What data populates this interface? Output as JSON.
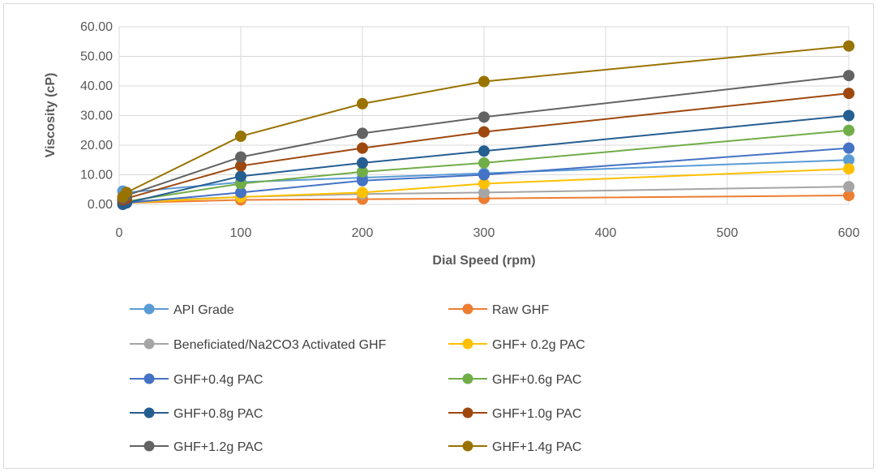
{
  "chart_data": {
    "type": "scatter",
    "xlabel": "Dial Speed (rpm)",
    "ylabel": "Viscosity (cP)",
    "xlim": [
      0,
      600
    ],
    "ylim": [
      0,
      60
    ],
    "x_ticks": [
      "0",
      "100",
      "200",
      "300",
      "400",
      "500",
      "600"
    ],
    "y_ticks": [
      "0.00",
      "10.00",
      "20.00",
      "30.00",
      "40.00",
      "50.00",
      "60.00"
    ],
    "grid": "on",
    "legend_position": "bottom",
    "x": [
      3,
      6,
      100,
      200,
      300,
      600
    ],
    "series": [
      {
        "name": "API Grade",
        "color": "#5b9bd5",
        "values": [
          4.5,
          4.0,
          7.5,
          9.0,
          10.5,
          15.0
        ]
      },
      {
        "name": "Raw GHF",
        "color": "#ed7d31",
        "values": [
          0.5,
          0.5,
          1.5,
          1.75,
          2.0,
          3.0
        ]
      },
      {
        "name": "Beneficiated/Na2CO3 Activated GHF",
        "color": "#a5a5a5",
        "values": [
          1.0,
          1.0,
          2.5,
          3.5,
          4.0,
          6.0
        ]
      },
      {
        "name": "GHF+ 0.2g PAC",
        "color": "#ffc000",
        "values": [
          0.5,
          0.5,
          2.5,
          4.0,
          7.0,
          12.0
        ]
      },
      {
        "name": "GHF+0.4g PAC",
        "color": "#4472c4",
        "values": [
          0.5,
          0.5,
          4.0,
          8.0,
          10.0,
          19.0
        ]
      },
      {
        "name": "GHF+0.6g PAC",
        "color": "#70ad47",
        "values": [
          1.0,
          1.0,
          7.0,
          11.0,
          14.0,
          25.0
        ]
      },
      {
        "name": "GHF+0.8g PAC",
        "color": "#255e91",
        "values": [
          0.0,
          0.5,
          9.5,
          14.0,
          18.0,
          30.0
        ]
      },
      {
        "name": "GHF+1.0g PAC",
        "color": "#9e480e",
        "values": [
          1.5,
          2.0,
          13.0,
          19.0,
          24.5,
          37.5
        ]
      },
      {
        "name": "GHF+1.2g PAC",
        "color": "#636363",
        "values": [
          2.0,
          3.0,
          16.0,
          24.0,
          29.5,
          43.5
        ]
      },
      {
        "name": "GHF+1.4g PAC",
        "color": "#997300",
        "values": [
          2.5,
          4.0,
          23.0,
          34.0,
          41.5,
          53.5
        ]
      }
    ]
  }
}
